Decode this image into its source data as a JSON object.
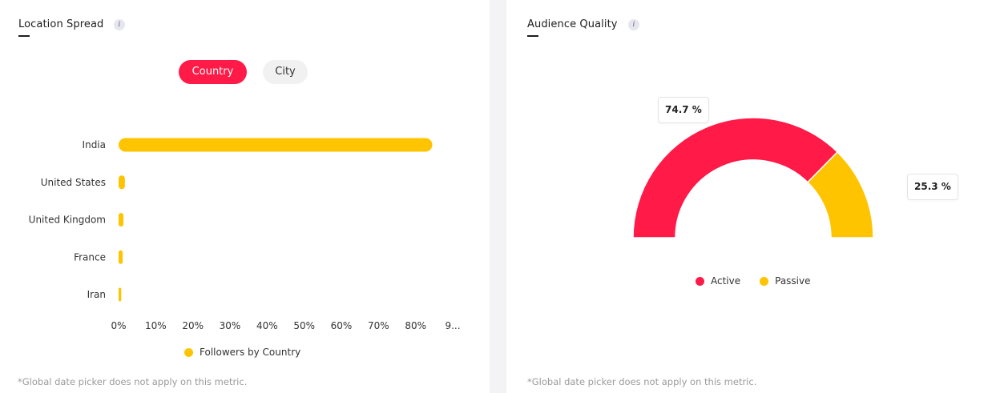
{
  "location_spread": {
    "title": "Location Spread",
    "toggle": {
      "country_label": "Country",
      "city_label": "City",
      "active": "Country"
    },
    "footnote": "*Global date picker does not apply on this metric."
  },
  "audience_quality": {
    "title": "Audience Quality",
    "footnote": "*Global date picker does not apply on this metric."
  },
  "chart_data": [
    {
      "type": "bar",
      "orientation": "horizontal",
      "categories": [
        "India",
        "United States",
        "United Kingdom",
        "France",
        "Iran"
      ],
      "series": [
        {
          "name": "Followers by Country",
          "values": [
            84.5,
            1.7,
            1.3,
            1.1,
            0.7
          ],
          "color": "#ffc400"
        }
      ],
      "x_ticks": [
        "0%",
        "10%",
        "20%",
        "30%",
        "40%",
        "50%",
        "60%",
        "70%",
        "80%",
        "9..."
      ],
      "xlim": [
        0,
        90
      ],
      "grid": false,
      "legend": "bottom"
    },
    {
      "type": "pie",
      "style": "half-donut",
      "slices": [
        {
          "name": "Active",
          "value": 74.7,
          "label": "74.7 %",
          "color": "#ff1a47"
        },
        {
          "name": "Passive",
          "value": 25.3,
          "label": "25.3 %",
          "color": "#ffc400"
        }
      ],
      "legend": "bottom"
    }
  ]
}
